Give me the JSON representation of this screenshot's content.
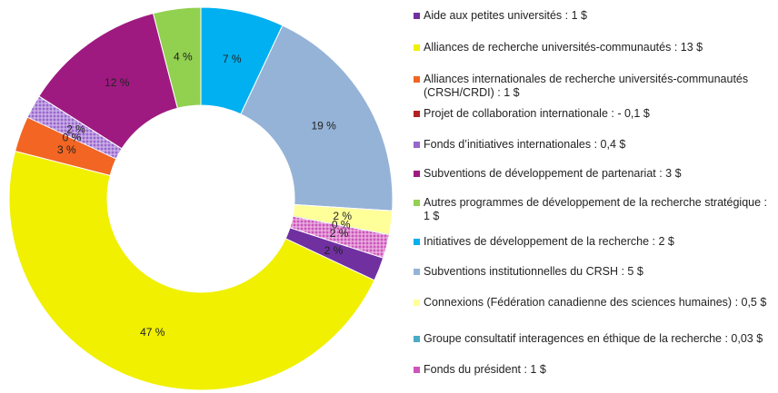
{
  "chart_data": {
    "type": "pie",
    "categories": [
      "Aide aux petites universités : 1 $",
      "Alliances de recherche universités-communautés : 13 $",
      "Alliances internationales de recherche universités-communautés (CRSH/CRDI) :  1 $",
      "Projet de collaboration internationale : - 0,1 $",
      "Fonds d’initiatives internationales : 0,4 $",
      "Subventions de développement de partenariat : 3 $",
      "Autres programmes de développement de la recherche stratégique : 1 $",
      "Initiatives de développement de la recherche : 2 $",
      "Subventions institutionnelles du CRSH : 5 $",
      "Connexions (Fédération canadienne des sciences humaines) : 0,5 $",
      "Groupe consultatif interagences en éthique de la recherche : 0,03 $",
      "Fonds du président : 1 $"
    ],
    "values": [
      2,
      47,
      3,
      0,
      2,
      12,
      4,
      7,
      19,
      2,
      0,
      2
    ],
    "value_labels": [
      "2 %",
      "47 %",
      "3 %",
      "0 %",
      "2 %",
      "12 %",
      "4 %",
      "7 %",
      "19 %",
      "2 %",
      "0 %",
      "2 %"
    ],
    "colors": [
      "#7030a0",
      "#f0f000",
      "#f26522",
      "#b22222",
      "url(#hatch1)",
      "#9e1a80",
      "#92d050",
      "#00b0f0",
      "#95b3d7",
      "#ffff99",
      "#4bacc6",
      "url(#hatch2)"
    ]
  }
}
